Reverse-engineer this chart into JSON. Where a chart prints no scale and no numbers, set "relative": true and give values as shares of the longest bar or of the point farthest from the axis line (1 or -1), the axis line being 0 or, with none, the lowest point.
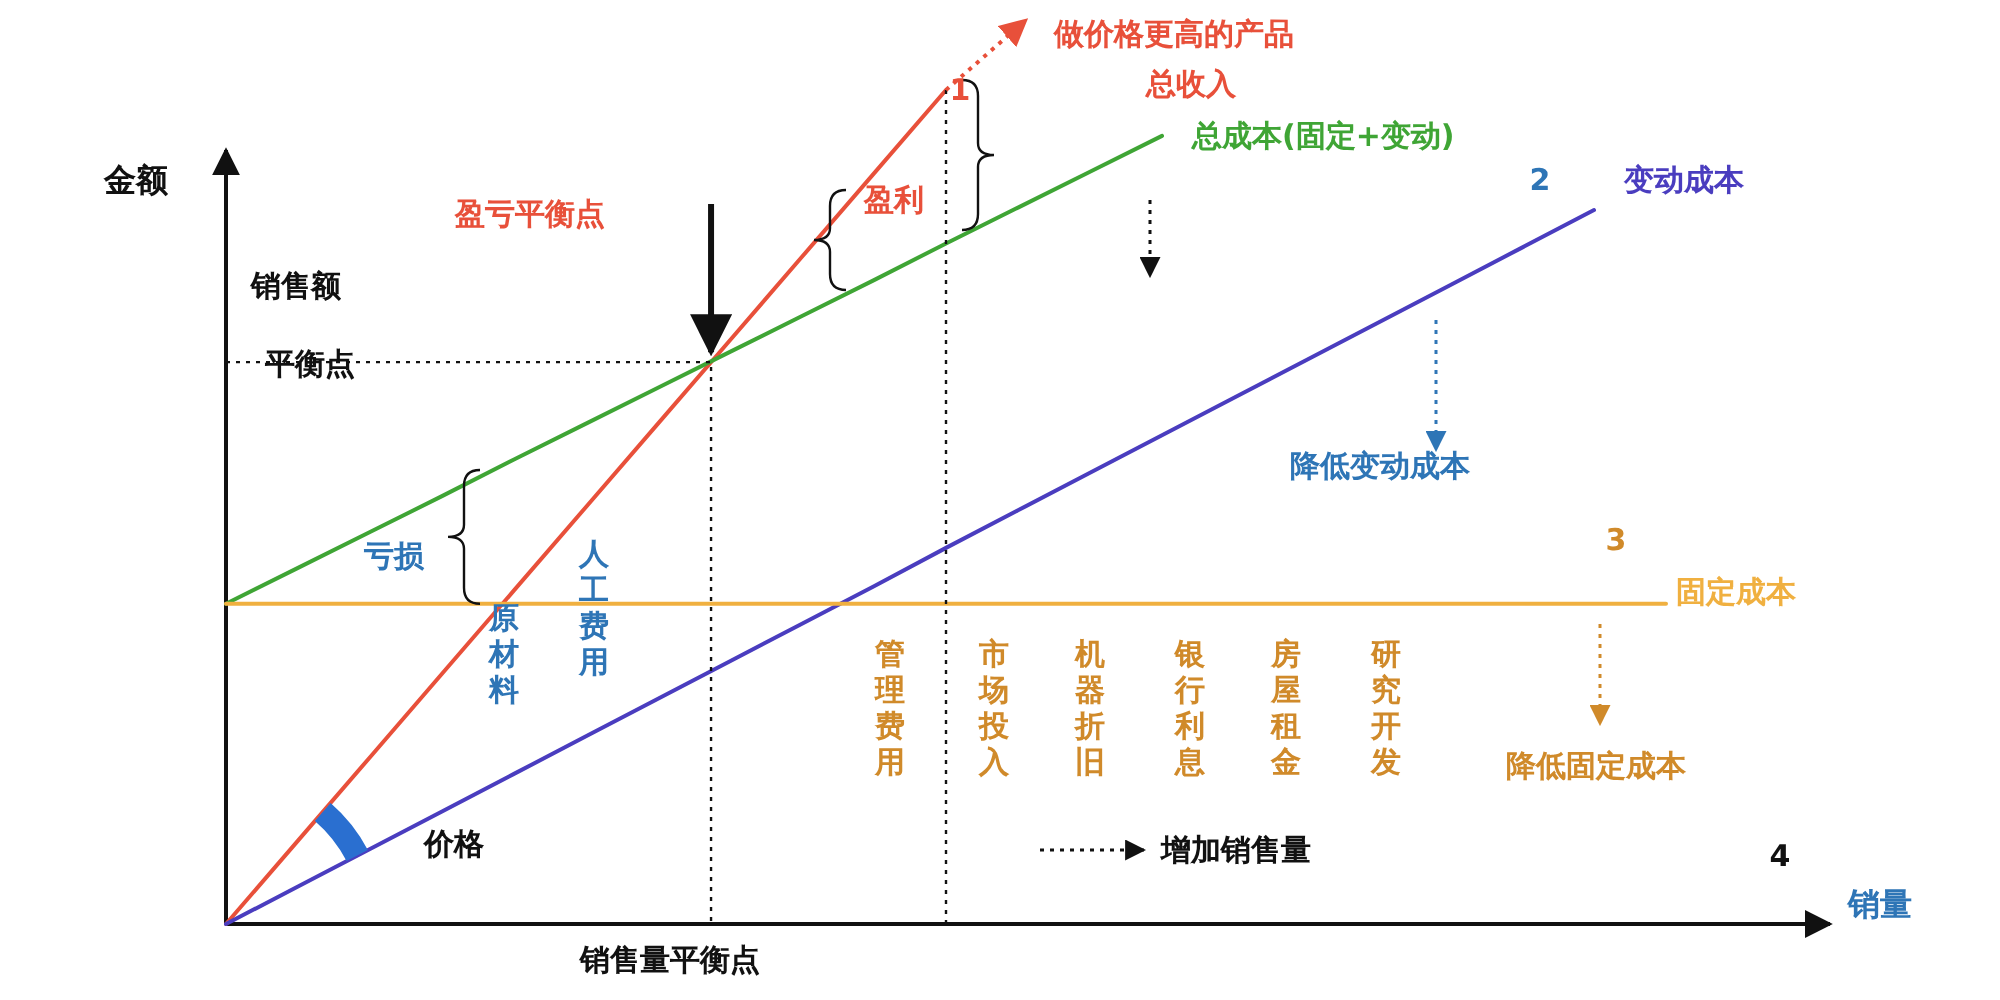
{
  "chart_data": {
    "type": "line",
    "relative": true,
    "xlabel": "销量",
    "ylabel": "金额",
    "line_style": "solid",
    "categories": [
      null,
      null,
      null,
      null,
      null,
      null,
      null,
      null,
      null,
      null,
      null,
      null,
      null,
      null,
      null,
      null,
      null,
      null,
      null,
      null,
      null,
      null,
      null
    ],
    "series": [
      {
        "name": "总收入",
        "color": "#e8503a",
        "values": [
          0,
          0.1,
          0.2,
          0.3,
          0.4,
          0.5,
          0.6,
          0.7,
          0.8,
          0.9,
          1,
          null,
          null,
          null,
          null,
          null,
          null,
          null,
          null,
          null,
          null,
          null,
          null
        ]
      },
      {
        "name": "总成本(固定+变动)",
        "color": "#3fa535",
        "values": [
          0.384,
          0.427,
          0.47,
          0.513,
          0.557,
          0.6,
          0.643,
          0.686,
          0.729,
          0.772,
          0.816,
          0.859,
          0.902,
          0.945,
          null,
          null,
          null,
          null,
          null,
          null,
          null,
          null,
          null
        ]
      },
      {
        "name": "变动成本",
        "color": "#4a3dbf",
        "values": [
          0,
          0.045,
          0.09,
          0.135,
          0.18,
          0.225,
          0.27,
          0.315,
          0.36,
          0.405,
          0.451,
          0.496,
          0.541,
          0.586,
          0.631,
          0.676,
          0.721,
          0.766,
          0.811,
          0.856,
          null,
          null,
          null
        ]
      },
      {
        "name": "固定成本",
        "color": "#f0b040",
        "values": [
          0.384,
          0.384,
          0.384,
          0.384,
          0.384,
          0.384,
          0.384,
          0.384,
          0.384,
          0.384,
          0.384,
          0.384,
          0.384,
          0.384,
          0.384,
          0.384,
          0.384,
          0.384,
          0.384,
          0.384,
          0.384,
          null,
          null
        ]
      }
    ],
    "annotations": [
      "盈亏平衡点",
      "做价格更高的产品",
      "1",
      "盈利",
      "销售额",
      "平衡点",
      "亏损",
      "原材料",
      "人工费用",
      "2",
      "降低变动成本",
      "3",
      "管理费用",
      "市场投入",
      "机器折旧",
      "银行利息",
      "房屋租金",
      "研究开发",
      "降低固定成本",
      "价格",
      "增加销售量",
      "4",
      "销售量平衡点"
    ]
  }
}
